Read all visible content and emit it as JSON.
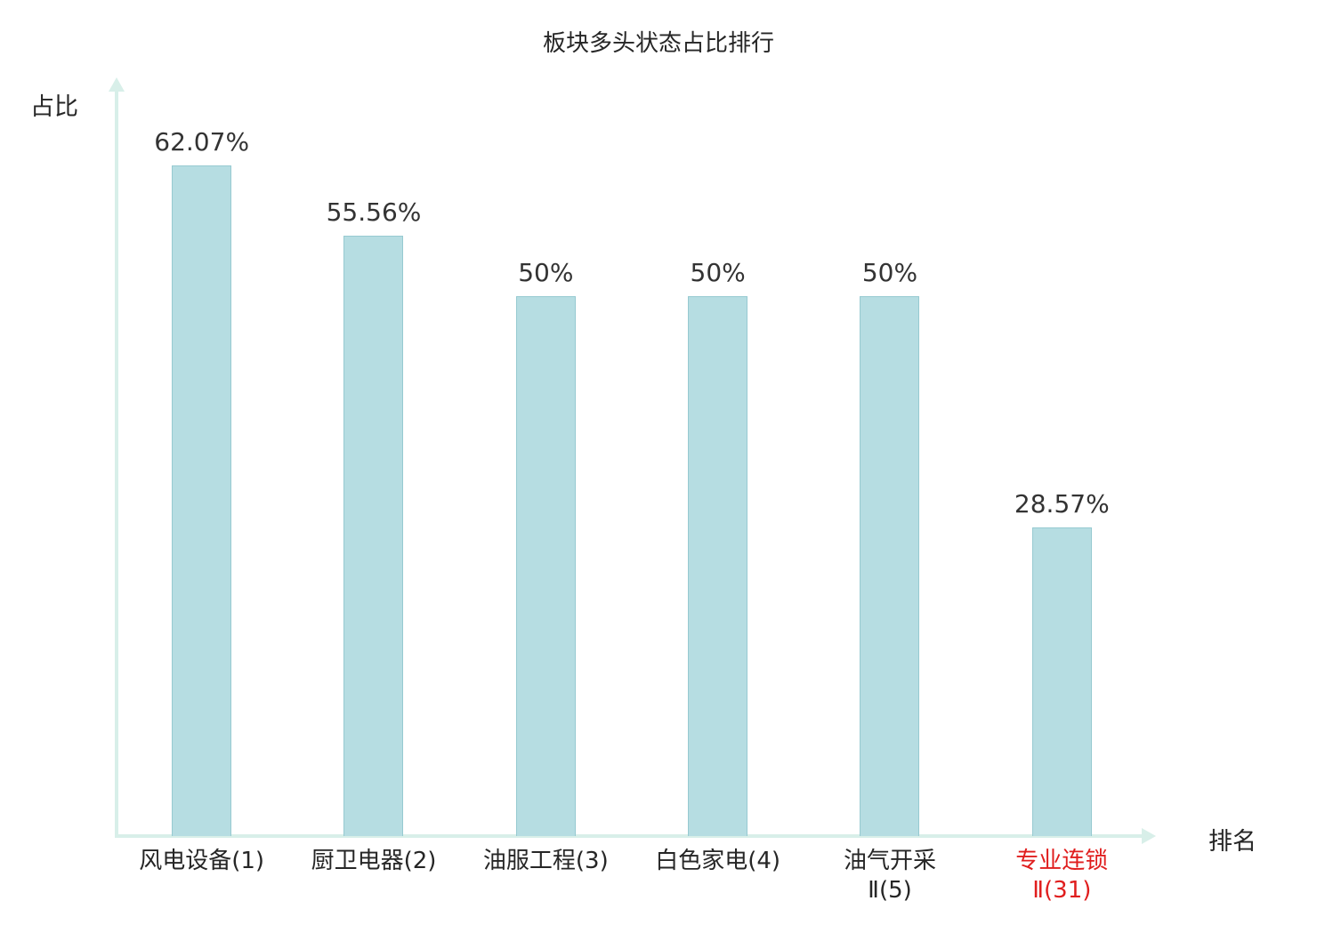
{
  "title": "板块多头状态占比排行",
  "chart_data": {
    "type": "bar",
    "title": "板块多头状态占比排行",
    "xlabel": "排名",
    "ylabel": "占比",
    "categories": [
      "风电设备(1)",
      "厨卫电器(2)",
      "油服工程(3)",
      "白色家电(4)",
      "油气开采Ⅱ(5)",
      "专业连锁Ⅱ(31)"
    ],
    "category_lines": [
      [
        "风电设备(1)"
      ],
      [
        "厨卫电器(2)"
      ],
      [
        "油服工程(3)"
      ],
      [
        "白色家电(4)"
      ],
      [
        "油气开采",
        "Ⅱ(5)"
      ],
      [
        "专业连锁",
        "Ⅱ(31)"
      ]
    ],
    "values": [
      62.07,
      55.56,
      50,
      50,
      50,
      28.57
    ],
    "value_labels": [
      "62.07%",
      "55.56%",
      "50%",
      "50%",
      "50%",
      "28.57%"
    ],
    "ylim": [
      0,
      70
    ],
    "grid": false,
    "legend": "none",
    "highlight_index": 5,
    "colors": {
      "bar_fill": "#b6dde2",
      "bar_border": "#97cad1",
      "axis": "#d8efe9",
      "text": "#262626",
      "highlight_text": "#e01e1e"
    }
  }
}
